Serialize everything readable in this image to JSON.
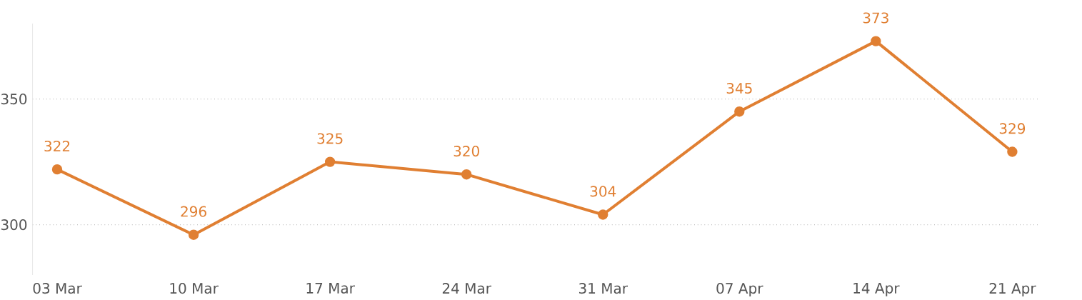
{
  "chart_data": {
    "type": "line",
    "categories": [
      "03 Mar",
      "10 Mar",
      "17 Mar",
      "24 Mar",
      "31 Mar",
      "07 Apr",
      "14 Apr",
      "21 Apr"
    ],
    "values": [
      322,
      296,
      325,
      320,
      304,
      345,
      373,
      329
    ],
    "color": "#e07f32",
    "ylim": [
      280,
      380
    ],
    "yticks": [
      300,
      350
    ],
    "grid": "y",
    "marker": "circle",
    "line_style": "solid",
    "data_labels": true
  }
}
